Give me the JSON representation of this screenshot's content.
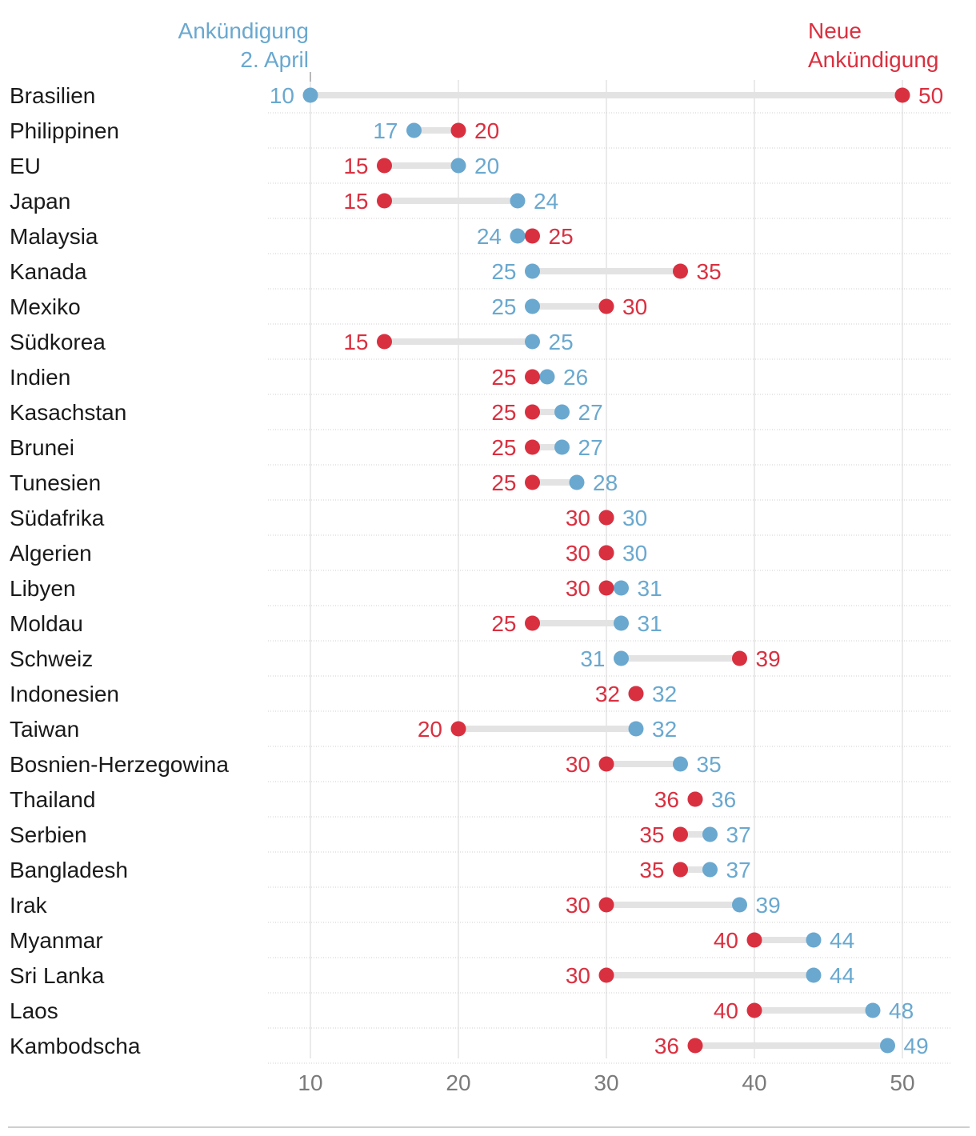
{
  "chart_data": {
    "type": "dumbbell",
    "title": "",
    "xlabel": "",
    "ylabel": "",
    "xlim": [
      7,
      53
    ],
    "xticks": [
      10,
      20,
      30,
      40,
      50
    ],
    "grid": "vertical",
    "legend": [
      {
        "series": "april",
        "lines": [
          "Ankündigung",
          "2. April"
        ],
        "color": "#6aa8cf"
      },
      {
        "series": "new",
        "lines": [
          "Neue",
          "Ankündigung"
        ],
        "color": "#d93040"
      }
    ],
    "colors": {
      "april": "#6aa8cf",
      "new": "#d93040",
      "connector": "#e3e3e3"
    },
    "rows": [
      {
        "country": "Brasilien",
        "april": 10,
        "new": 50
      },
      {
        "country": "Philippinen",
        "april": 17,
        "new": 20
      },
      {
        "country": "EU",
        "april": 20,
        "new": 15
      },
      {
        "country": "Japan",
        "april": 24,
        "new": 15
      },
      {
        "country": "Malaysia",
        "april": 24,
        "new": 25
      },
      {
        "country": "Kanada",
        "april": 25,
        "new": 35
      },
      {
        "country": "Mexiko",
        "april": 25,
        "new": 30
      },
      {
        "country": "Südkorea",
        "april": 25,
        "new": 15
      },
      {
        "country": "Indien",
        "april": 26,
        "new": 25
      },
      {
        "country": "Kasachstan",
        "april": 27,
        "new": 25
      },
      {
        "country": "Brunei",
        "april": 27,
        "new": 25
      },
      {
        "country": "Tunesien",
        "april": 28,
        "new": 25
      },
      {
        "country": "Südafrika",
        "april": 30,
        "new": 30
      },
      {
        "country": "Algerien",
        "april": 30,
        "new": 30
      },
      {
        "country": "Libyen",
        "april": 31,
        "new": 30
      },
      {
        "country": "Moldau",
        "april": 31,
        "new": 25
      },
      {
        "country": "Schweiz",
        "april": 31,
        "new": 39
      },
      {
        "country": "Indonesien",
        "april": 32,
        "new": 32
      },
      {
        "country": "Taiwan",
        "april": 32,
        "new": 20
      },
      {
        "country": "Bosnien-Herzegowina",
        "april": 35,
        "new": 30
      },
      {
        "country": "Thailand",
        "april": 36,
        "new": 36
      },
      {
        "country": "Serbien",
        "april": 37,
        "new": 35
      },
      {
        "country": "Bangladesh",
        "april": 37,
        "new": 35
      },
      {
        "country": "Irak",
        "april": 39,
        "new": 30
      },
      {
        "country": "Myanmar",
        "april": 44,
        "new": 40
      },
      {
        "country": "Sri Lanka",
        "april": 44,
        "new": 30
      },
      {
        "country": "Laos",
        "april": 48,
        "new": 40
      },
      {
        "country": "Kambodscha",
        "april": 49,
        "new": 36
      }
    ]
  }
}
